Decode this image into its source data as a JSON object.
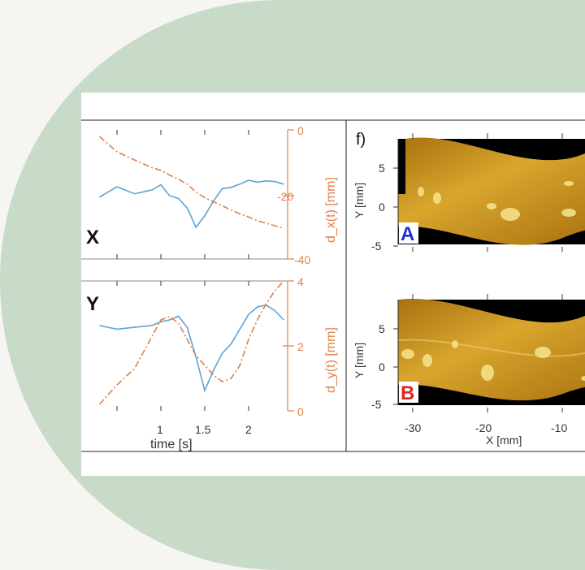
{
  "colors": {
    "page_background": "#f7f5f2",
    "decorative_band": "#c8dbc9",
    "series_blue": "#5ba3d6",
    "series_orange": "#e07f4a",
    "label_A": "#1a2fd8",
    "label_B": "#e0261c"
  },
  "left_panels": {
    "top": {
      "label": "X",
      "right_axis_label": "d_x(t) [mm]",
      "right_ticks": [
        "0",
        "-20",
        "-40"
      ]
    },
    "bottom": {
      "label": "Y",
      "right_axis_label": "d_y(t) [mm]",
      "right_ticks": [
        "4",
        "2",
        "0"
      ]
    },
    "x_axis_label": "time [s]",
    "x_ticks": [
      "1",
      "1.5",
      "2"
    ]
  },
  "right_panel": {
    "panel_label": "f)",
    "images": [
      {
        "label": "A",
        "y_axis_label": "Y [mm]",
        "y_ticks": [
          "5",
          "0",
          "-5"
        ]
      },
      {
        "label": "B",
        "y_axis_label": "Y [mm]",
        "y_ticks": [
          "5",
          "0",
          "-5"
        ]
      }
    ],
    "x_axis_label": "X [mm]",
    "x_ticks": [
      "-30",
      "-20",
      "-10"
    ]
  },
  "chart_data": [
    {
      "type": "line",
      "panel": "X",
      "x": [
        0.3,
        0.5,
        0.7,
        0.9,
        1.0,
        1.1,
        1.2,
        1.3,
        1.4,
        1.5,
        1.6,
        1.7,
        1.8,
        1.9,
        2.0,
        2.1,
        2.2,
        2.3,
        2.4
      ],
      "series": [
        {
          "values": [
            10.4,
            8.8,
            9.9,
            9.3,
            8.5,
            10.2,
            10.6,
            12.1,
            15.1,
            13.3,
            11.0,
            9.1,
            8.9,
            8.4,
            7.8,
            8.1,
            7.9,
            8.0,
            8.4
          ]
        },
        {
          "values": [
            -2.0,
            -6.8,
            -9.3,
            -11.7,
            -12.5,
            -14.0,
            -15.3,
            -16.8,
            -19.3,
            -21.0,
            -22.3,
            -23.5,
            -24.8,
            -26.0,
            -27.0,
            -28.1,
            -28.9,
            -29.7,
            -30.5
          ]
        }
      ],
      "ylim_right": [
        -40,
        0
      ]
    },
    {
      "type": "line",
      "panel": "Y",
      "x": [
        0.3,
        0.5,
        0.7,
        0.9,
        1.0,
        1.1,
        1.2,
        1.3,
        1.4,
        1.5,
        1.6,
        1.7,
        1.8,
        1.9,
        2.0,
        2.1,
        2.2,
        2.3,
        2.4
      ],
      "series": [
        {
          "values": [
            0.24,
            0.26,
            0.25,
            0.24,
            0.22,
            0.21,
            0.19,
            0.25,
            0.41,
            0.59,
            0.48,
            0.39,
            0.34,
            0.26,
            0.18,
            0.14,
            0.13,
            0.16,
            0.21
          ]
        },
        {
          "values": [
            0.2,
            0.8,
            1.3,
            2.3,
            2.8,
            2.9,
            2.7,
            2.2,
            1.7,
            1.4,
            1.1,
            0.9,
            1.0,
            1.4,
            2.2,
            2.8,
            3.3,
            3.7,
            4.0
          ]
        }
      ],
      "ylim_right": [
        0,
        4
      ]
    }
  ]
}
